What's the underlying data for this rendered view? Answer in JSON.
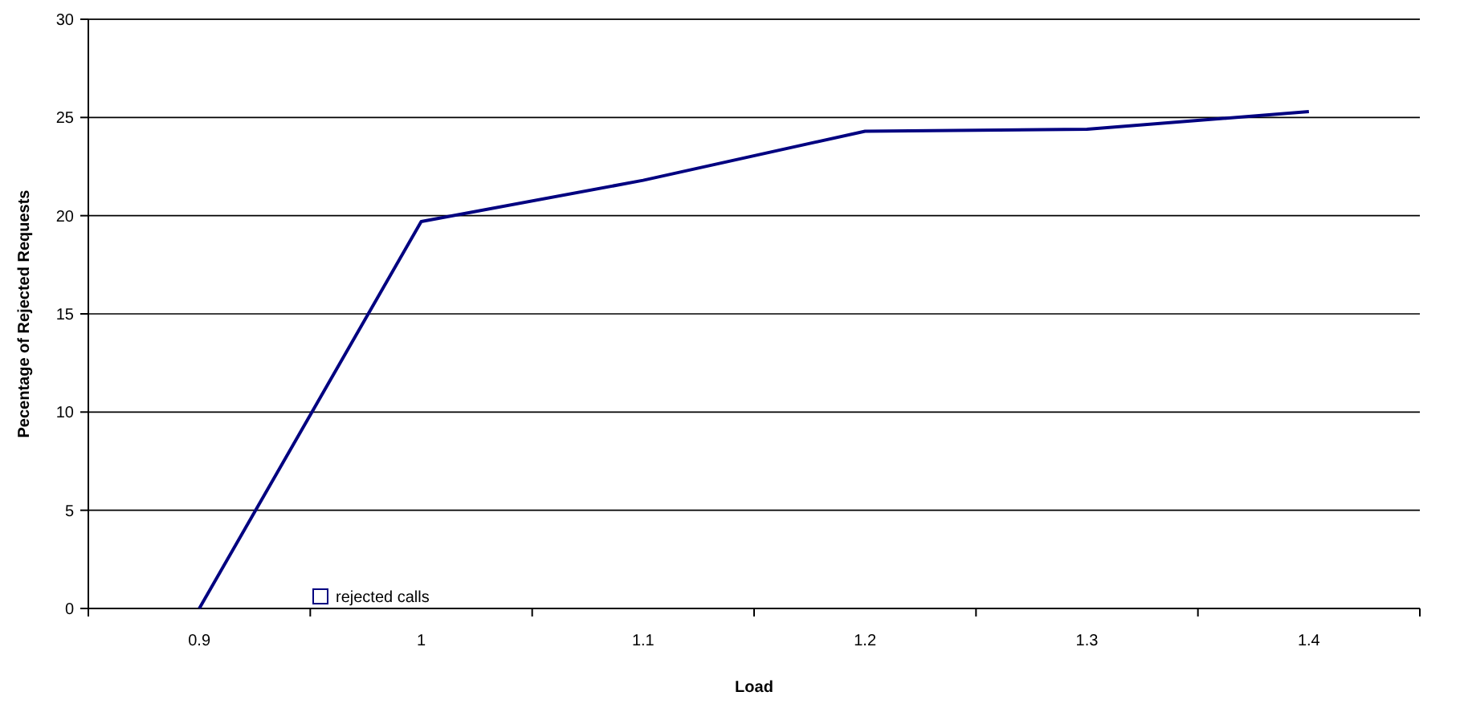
{
  "chart_data": {
    "type": "line",
    "xlabel": "Load",
    "ylabel": "Pecentage of Rejected Requests",
    "categories": [
      "0.9",
      "1",
      "1.1",
      "1.2",
      "1.3",
      "1.4"
    ],
    "series": [
      {
        "name": "rejected calls",
        "color": "#000080",
        "values": [
          0,
          19.7,
          21.8,
          24.3,
          24.4,
          25.3
        ]
      }
    ],
    "ylim": [
      0,
      30
    ],
    "yticks": [
      0,
      5,
      10,
      15,
      20,
      25,
      30
    ],
    "grid": "y",
    "legend": "bottom left",
    "marker": "none",
    "line_style": "solid"
  }
}
